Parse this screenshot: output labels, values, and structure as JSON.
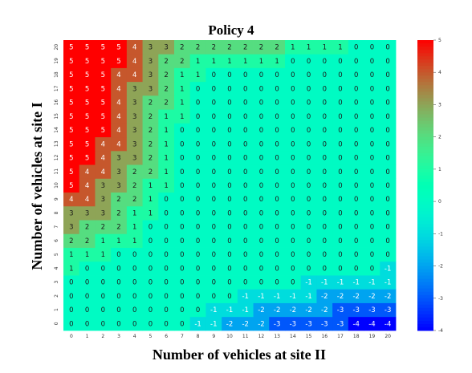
{
  "chart_data": {
    "type": "heatmap",
    "title": "Policy 4",
    "xlabel": "Number of vehicles at site II",
    "ylabel": "Number of vehicles at site I",
    "x": [
      0,
      1,
      2,
      3,
      4,
      5,
      6,
      7,
      8,
      9,
      10,
      11,
      12,
      13,
      14,
      15,
      16,
      17,
      18,
      19,
      20
    ],
    "y": [
      0,
      1,
      2,
      3,
      4,
      5,
      6,
      7,
      8,
      9,
      10,
      11,
      12,
      13,
      14,
      15,
      16,
      17,
      18,
      19,
      20
    ],
    "colorbar": {
      "min": -4,
      "max": 5,
      "ticks": [
        -4,
        -3,
        -2,
        -1,
        0,
        1,
        2,
        3,
        4,
        5
      ],
      "colormap": "rainbow"
    },
    "values": [
      [
        0,
        0,
        0,
        0,
        0,
        0,
        0,
        0,
        -1,
        -1,
        -2,
        -2,
        -2,
        -3,
        -3,
        -3,
        -3,
        -3,
        -4,
        -4,
        -4
      ],
      [
        0,
        0,
        0,
        0,
        0,
        0,
        0,
        0,
        0,
        -1,
        -1,
        -1,
        -2,
        -2,
        -2,
        -2,
        -2,
        -3,
        -3,
        -3,
        -3
      ],
      [
        0,
        0,
        0,
        0,
        0,
        0,
        0,
        0,
        0,
        0,
        0,
        -1,
        -1,
        -1,
        -1,
        -1,
        -2,
        -2,
        -2,
        -2,
        -2
      ],
      [
        0,
        0,
        0,
        0,
        0,
        0,
        0,
        0,
        0,
        0,
        0,
        0,
        0,
        0,
        0,
        -1,
        -1,
        -1,
        -1,
        -1,
        -1
      ],
      [
        1,
        0,
        0,
        0,
        0,
        0,
        0,
        0,
        0,
        0,
        0,
        0,
        0,
        0,
        0,
        0,
        0,
        0,
        0,
        0,
        -1
      ],
      [
        1,
        1,
        1,
        0,
        0,
        0,
        0,
        0,
        0,
        0,
        0,
        0,
        0,
        0,
        0,
        0,
        0,
        0,
        0,
        0,
        0
      ],
      [
        2,
        2,
        1,
        1,
        1,
        0,
        0,
        0,
        0,
        0,
        0,
        0,
        0,
        0,
        0,
        0,
        0,
        0,
        0,
        0,
        0
      ],
      [
        3,
        2,
        2,
        2,
        1,
        0,
        0,
        0,
        0,
        0,
        0,
        0,
        0,
        0,
        0,
        0,
        0,
        0,
        0,
        0,
        0
      ],
      [
        3,
        3,
        3,
        2,
        1,
        1,
        0,
        0,
        0,
        0,
        0,
        0,
        0,
        0,
        0,
        0,
        0,
        0,
        0,
        0,
        0
      ],
      [
        4,
        4,
        3,
        2,
        2,
        1,
        0,
        0,
        0,
        0,
        0,
        0,
        0,
        0,
        0,
        0,
        0,
        0,
        0,
        0,
        0
      ],
      [
        5,
        4,
        3,
        3,
        2,
        1,
        1,
        0,
        0,
        0,
        0,
        0,
        0,
        0,
        0,
        0,
        0,
        0,
        0,
        0,
        0
      ],
      [
        5,
        4,
        4,
        3,
        2,
        2,
        1,
        0,
        0,
        0,
        0,
        0,
        0,
        0,
        0,
        0,
        0,
        0,
        0,
        0,
        0
      ],
      [
        5,
        5,
        4,
        3,
        3,
        2,
        1,
        0,
        0,
        0,
        0,
        0,
        0,
        0,
        0,
        0,
        0,
        0,
        0,
        0,
        0
      ],
      [
        5,
        5,
        4,
        4,
        3,
        2,
        1,
        0,
        0,
        0,
        0,
        0,
        0,
        0,
        0,
        0,
        0,
        0,
        0,
        0,
        0
      ],
      [
        5,
        5,
        5,
        4,
        3,
        2,
        1,
        0,
        0,
        0,
        0,
        0,
        0,
        0,
        0,
        0,
        0,
        0,
        0,
        0,
        0
      ],
      [
        5,
        5,
        5,
        4,
        3,
        2,
        1,
        1,
        0,
        0,
        0,
        0,
        0,
        0,
        0,
        0,
        0,
        0,
        0,
        0,
        0
      ],
      [
        5,
        5,
        5,
        4,
        3,
        2,
        2,
        1,
        0,
        0,
        0,
        0,
        0,
        0,
        0,
        0,
        0,
        0,
        0,
        0,
        0
      ],
      [
        5,
        5,
        5,
        4,
        3,
        3,
        2,
        1,
        0,
        0,
        0,
        0,
        0,
        0,
        0,
        0,
        0,
        0,
        0,
        0,
        0
      ],
      [
        5,
        5,
        5,
        4,
        4,
        3,
        2,
        1,
        1,
        0,
        0,
        0,
        0,
        0,
        0,
        0,
        0,
        0,
        0,
        0,
        0
      ],
      [
        5,
        5,
        5,
        5,
        4,
        3,
        2,
        2,
        1,
        1,
        1,
        1,
        1,
        1,
        0,
        0,
        0,
        0,
        0,
        0,
        0
      ],
      [
        5,
        5,
        5,
        5,
        4,
        3,
        3,
        2,
        2,
        2,
        2,
        2,
        2,
        2,
        1,
        1,
        1,
        1,
        0,
        0,
        0
      ]
    ]
  }
}
